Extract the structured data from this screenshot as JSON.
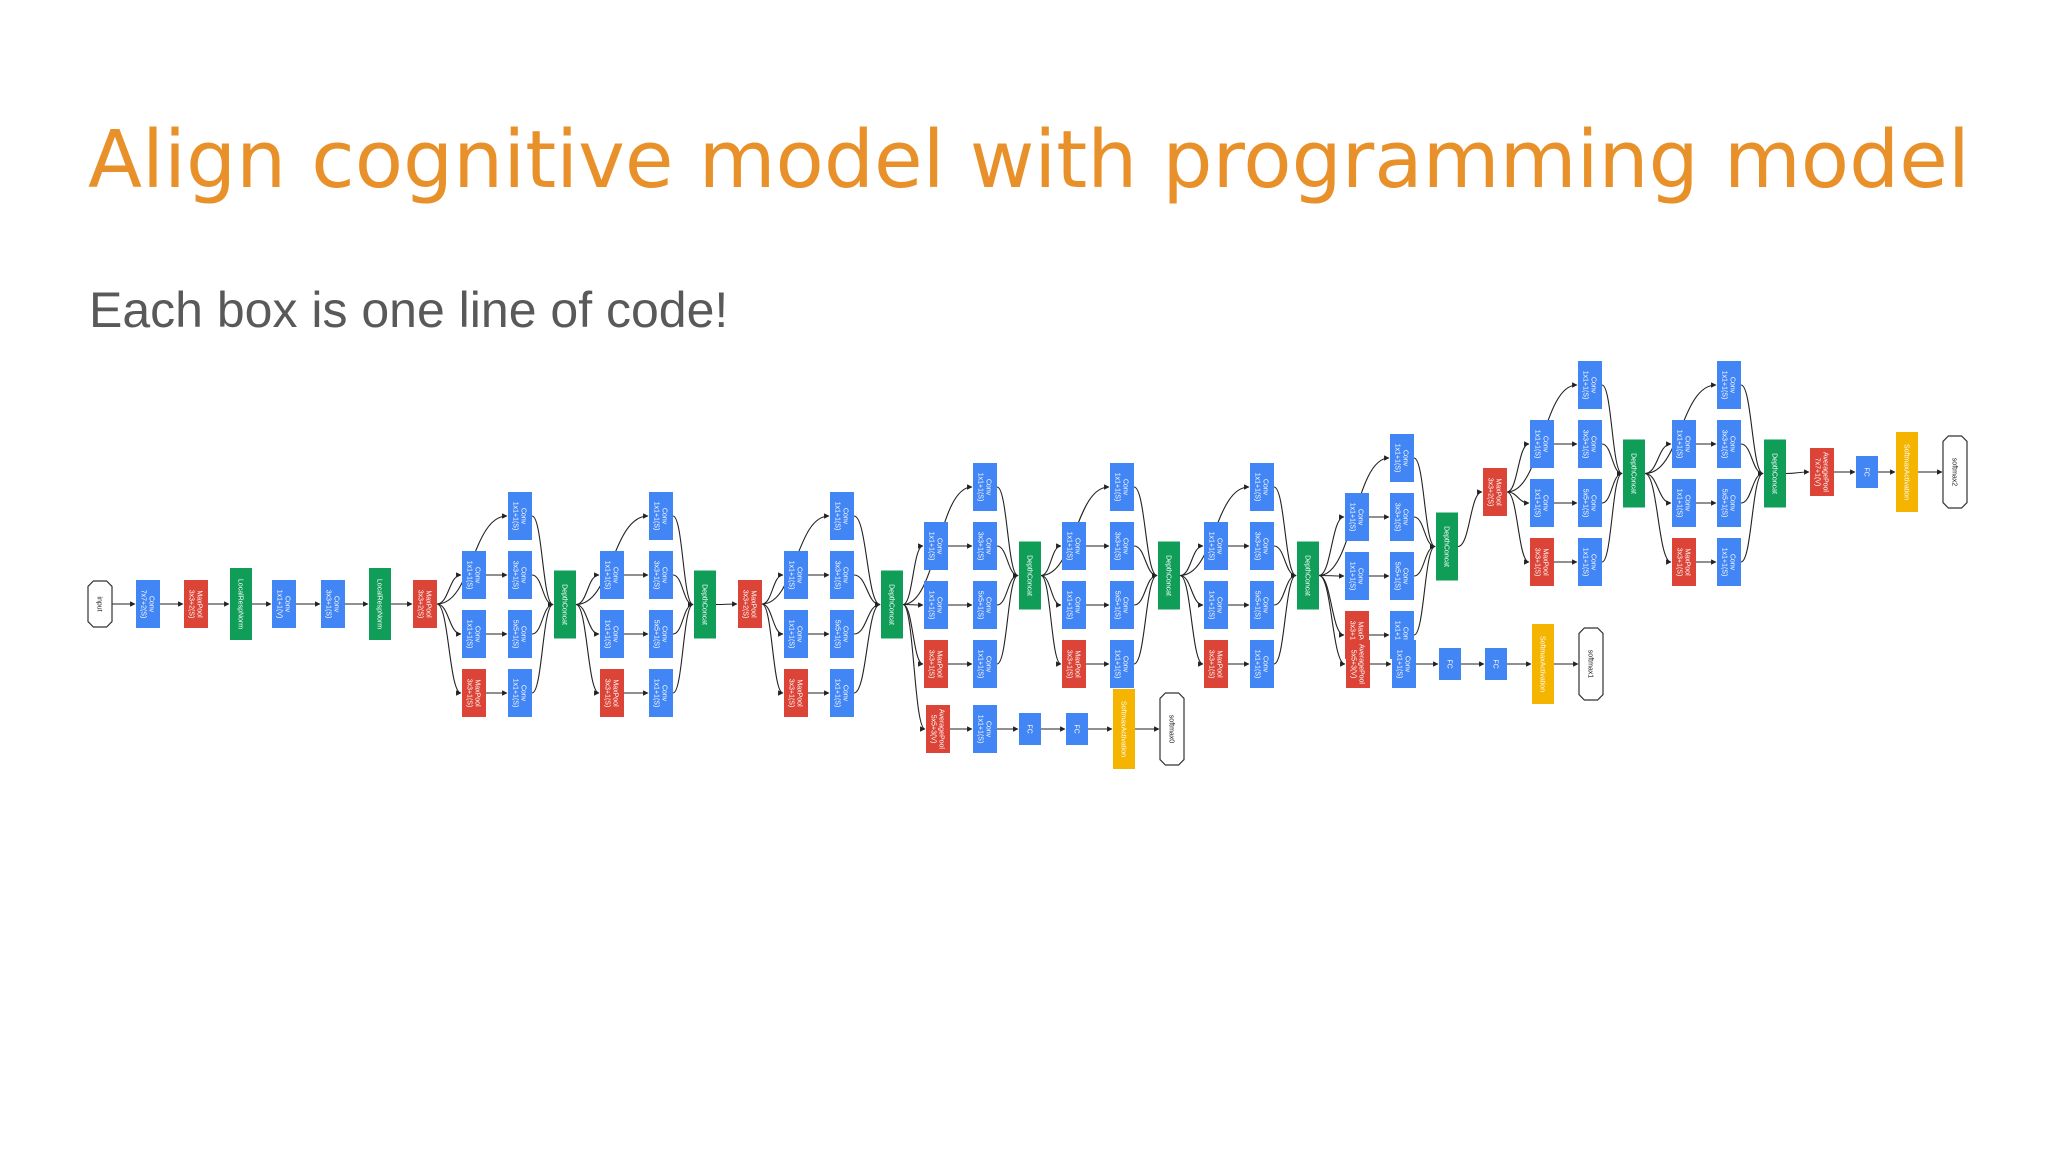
{
  "slide": {
    "title": "Align cognitive model with programming model",
    "subtitle": "Each box is one line of code!"
  },
  "colors": {
    "title": "#e8912a",
    "subtitle": "#595959",
    "conv": "#4285f4",
    "pool": "#db4437",
    "concat": "#0f9d58",
    "softmax_activation": "#f4b400",
    "edge": "#222222"
  },
  "diagram": {
    "nodes": [
      {
        "id": "input",
        "label": "input",
        "kind": "io"
      },
      {
        "id": "conv1",
        "label": "Conv\n7x7+2(S)",
        "kind": "conv"
      },
      {
        "id": "mp1",
        "label": "MaxPool\n3x3+2(S)",
        "kind": "pool"
      },
      {
        "id": "lrn1",
        "label": "LocalRespNorm",
        "kind": "concat"
      },
      {
        "id": "conv2a",
        "label": "Conv\n1x1+1(V)",
        "kind": "conv"
      },
      {
        "id": "conv2b",
        "label": "Conv\n3x3+1(S)",
        "kind": "conv"
      },
      {
        "id": "lrn2",
        "label": "LocalRespNorm",
        "kind": "concat"
      },
      {
        "id": "mp2",
        "label": "MaxPool\n3x3+2(S)",
        "kind": "pool"
      },
      {
        "id": "i3a_c1",
        "label": "Conv\n1x1+1(S)",
        "kind": "conv"
      },
      {
        "id": "i3a_r3",
        "label": "Conv\n1x1+1(S)",
        "kind": "conv"
      },
      {
        "id": "i3a_c3",
        "label": "Conv\n3x3+1(S)",
        "kind": "conv"
      },
      {
        "id": "i3a_r5",
        "label": "Conv\n1x1+1(S)",
        "kind": "conv"
      },
      {
        "id": "i3a_c5",
        "label": "Conv\n5x5+1(S)",
        "kind": "conv"
      },
      {
        "id": "i3a_mp",
        "label": "MaxPool\n3x3+1(S)",
        "kind": "pool"
      },
      {
        "id": "i3a_pp",
        "label": "Conv\n1x1+1(S)",
        "kind": "conv"
      },
      {
        "id": "i3a_dc",
        "label": "DepthConcat",
        "kind": "concat"
      },
      {
        "id": "i3b_c1",
        "label": "Conv\n1x1+1(S)",
        "kind": "conv"
      },
      {
        "id": "i3b_r3",
        "label": "Conv\n1x1+1(S)",
        "kind": "conv"
      },
      {
        "id": "i3b_c3",
        "label": "Conv\n3x3+1(S)",
        "kind": "conv"
      },
      {
        "id": "i3b_r5",
        "label": "Conv\n1x1+1(S)",
        "kind": "conv"
      },
      {
        "id": "i3b_c5",
        "label": "Conv\n5x5+1(S)",
        "kind": "conv"
      },
      {
        "id": "i3b_mp",
        "label": "MaxPool\n3x3+1(S)",
        "kind": "pool"
      },
      {
        "id": "i3b_pp",
        "label": "Conv\n1x1+1(S)",
        "kind": "conv"
      },
      {
        "id": "i3b_dc",
        "label": "DepthConcat",
        "kind": "concat"
      },
      {
        "id": "mp3",
        "label": "MaxPool\n3x3+2(S)",
        "kind": "pool"
      },
      {
        "id": "i4a_c1",
        "label": "Conv\n1x1+1(S)",
        "kind": "conv"
      },
      {
        "id": "i4a_r3",
        "label": "Conv\n1x1+1(S)",
        "kind": "conv"
      },
      {
        "id": "i4a_c3",
        "label": "Conv\n3x3+1(S)",
        "kind": "conv"
      },
      {
        "id": "i4a_r5",
        "label": "Conv\n1x1+1(S)",
        "kind": "conv"
      },
      {
        "id": "i4a_c5",
        "label": "Conv\n5x5+1(S)",
        "kind": "conv"
      },
      {
        "id": "i4a_mp",
        "label": "MaxPool\n3x3+1(S)",
        "kind": "pool"
      },
      {
        "id": "i4a_pp",
        "label": "Conv\n1x1+1(S)",
        "kind": "conv"
      },
      {
        "id": "i4a_dc",
        "label": "DepthConcat",
        "kind": "concat"
      },
      {
        "id": "i4b_c1",
        "label": "Conv\n1x1+1(S)",
        "kind": "conv"
      },
      {
        "id": "i4b_r3",
        "label": "Conv\n1x1+1(S)",
        "kind": "conv"
      },
      {
        "id": "i4b_c3",
        "label": "Conv\n3x3+1(S)",
        "kind": "conv"
      },
      {
        "id": "i4b_r5",
        "label": "Conv\n1x1+1(S)",
        "kind": "conv"
      },
      {
        "id": "i4b_c5",
        "label": "Conv\n5x5+1(S)",
        "kind": "conv"
      },
      {
        "id": "i4b_mp",
        "label": "MaxPool\n3x3+1(S)",
        "kind": "pool"
      },
      {
        "id": "i4b_pp",
        "label": "Conv\n1x1+1(S)",
        "kind": "conv"
      },
      {
        "id": "i4b_dc",
        "label": "DepthConcat",
        "kind": "concat"
      },
      {
        "id": "ax0_ap",
        "label": "AveragePool\n5x5+3(V)",
        "kind": "pool"
      },
      {
        "id": "ax0_conv",
        "label": "Conv\n1x1+1(S)",
        "kind": "conv"
      },
      {
        "id": "ax0_fc1",
        "label": "FC",
        "kind": "conv"
      },
      {
        "id": "ax0_fc2",
        "label": "FC",
        "kind": "conv"
      },
      {
        "id": "ax0_sm",
        "label": "SoftmaxActivation",
        "kind": "softmax"
      },
      {
        "id": "ax0_out",
        "label": "softmax0",
        "kind": "io"
      },
      {
        "id": "i4c_c1",
        "label": "Conv\n1x1+1(S)",
        "kind": "conv"
      },
      {
        "id": "i4c_r3",
        "label": "Conv\n1x1+1(S)",
        "kind": "conv"
      },
      {
        "id": "i4c_c3",
        "label": "Conv\n3x3+1(S)",
        "kind": "conv"
      },
      {
        "id": "i4c_r5",
        "label": "Conv\n1x1+1(S)",
        "kind": "conv"
      },
      {
        "id": "i4c_c5",
        "label": "Conv\n5x5+1(S)",
        "kind": "conv"
      },
      {
        "id": "i4c_mp",
        "label": "MaxPool\n3x3+1(S)",
        "kind": "pool"
      },
      {
        "id": "i4c_pp",
        "label": "Conv\n1x1+1(S)",
        "kind": "conv"
      },
      {
        "id": "i4c_dc",
        "label": "DepthConcat",
        "kind": "concat"
      },
      {
        "id": "i4d_c1",
        "label": "Conv\n1x1+1(S)",
        "kind": "conv"
      },
      {
        "id": "i4d_r3",
        "label": "Conv\n1x1+1(S)",
        "kind": "conv"
      },
      {
        "id": "i4d_c3",
        "label": "Conv\n3x3+1(S)",
        "kind": "conv"
      },
      {
        "id": "i4d_r5",
        "label": "Conv\n1x1+1(S)",
        "kind": "conv"
      },
      {
        "id": "i4d_c5",
        "label": "Conv\n5x5+1(S)",
        "kind": "conv"
      },
      {
        "id": "i4d_mp",
        "label": "MaxPool\n3x3+1(S)",
        "kind": "pool"
      },
      {
        "id": "i4d_pp",
        "label": "Conv\n1x1+1(S)",
        "kind": "conv"
      },
      {
        "id": "i4d_dc",
        "label": "DepthConcat",
        "kind": "concat"
      },
      {
        "id": "i4e_c1",
        "label": "Conv\n1x1+1(S)",
        "kind": "conv"
      },
      {
        "id": "i4e_r3",
        "label": "Conv\n1x1+1(S)",
        "kind": "conv"
      },
      {
        "id": "i4e_c3",
        "label": "Conv\n3x3+1(S)",
        "kind": "conv"
      },
      {
        "id": "i4e_r5",
        "label": "Conv\n1x1+1(S)",
        "kind": "conv"
      },
      {
        "id": "i4e_c5",
        "label": "Conv\n5x5+1(S)",
        "kind": "conv"
      },
      {
        "id": "i4e_mp",
        "label": "MaxPool\n3x3+1(S)",
        "kind": "pool"
      },
      {
        "id": "i4e_pp",
        "label": "Conv\n1x1+1(S)",
        "kind": "conv"
      },
      {
        "id": "i4e_dc",
        "label": "DepthConcat",
        "kind": "concat"
      },
      {
        "id": "ax1_ap",
        "label": "AveragePool\n5x5+3(V)",
        "kind": "pool"
      },
      {
        "id": "ax1_conv",
        "label": "Conv\n1x1+1(S)",
        "kind": "conv"
      },
      {
        "id": "ax1_fc1",
        "label": "FC",
        "kind": "conv"
      },
      {
        "id": "ax1_fc2",
        "label": "FC",
        "kind": "conv"
      },
      {
        "id": "ax1_sm",
        "label": "SoftmaxActivation",
        "kind": "softmax"
      },
      {
        "id": "ax1_out",
        "label": "softmax1",
        "kind": "io"
      },
      {
        "id": "mp4",
        "label": "MaxPool\n3x3+2(S)",
        "kind": "pool"
      },
      {
        "id": "i5a_c1",
        "label": "Conv\n1x1+1(S)",
        "kind": "conv"
      },
      {
        "id": "i5a_r3",
        "label": "Conv\n1x1+1(S)",
        "kind": "conv"
      },
      {
        "id": "i5a_c3",
        "label": "Conv\n3x3+1(S)",
        "kind": "conv"
      },
      {
        "id": "i5a_r5",
        "label": "Conv\n1x1+1(S)",
        "kind": "conv"
      },
      {
        "id": "i5a_c5",
        "label": "Conv\n5x5+1(S)",
        "kind": "conv"
      },
      {
        "id": "i5a_mp",
        "label": "MaxPool\n3x3+1(S)",
        "kind": "pool"
      },
      {
        "id": "i5a_pp",
        "label": "Conv\n1x1+1(S)",
        "kind": "conv"
      },
      {
        "id": "i5a_dc",
        "label": "DepthConcat",
        "kind": "concat"
      },
      {
        "id": "i5b_c1",
        "label": "Conv\n1x1+1(S)",
        "kind": "conv"
      },
      {
        "id": "i5b_r3",
        "label": "Conv\n1x1+1(S)",
        "kind": "conv"
      },
      {
        "id": "i5b_c3",
        "label": "Conv\n3x3+1(S)",
        "kind": "conv"
      },
      {
        "id": "i5b_r5",
        "label": "Conv\n1x1+1(S)",
        "kind": "conv"
      },
      {
        "id": "i5b_c5",
        "label": "Conv\n5x5+1(S)",
        "kind": "conv"
      },
      {
        "id": "i5b_mp",
        "label": "MaxPool\n3x3+1(S)",
        "kind": "pool"
      },
      {
        "id": "i5b_pp",
        "label": "Conv\n1x1+1(S)",
        "kind": "conv"
      },
      {
        "id": "i5b_dc",
        "label": "DepthConcat",
        "kind": "concat"
      },
      {
        "id": "ap_final",
        "label": "AveragePool\n7x7+1(V)",
        "kind": "pool"
      },
      {
        "id": "fc_final",
        "label": "FC",
        "kind": "conv"
      },
      {
        "id": "sm_final",
        "label": "SoftmaxActivation",
        "kind": "softmax"
      },
      {
        "id": "out_final",
        "label": "softmax2",
        "kind": "io"
      }
    ]
  }
}
